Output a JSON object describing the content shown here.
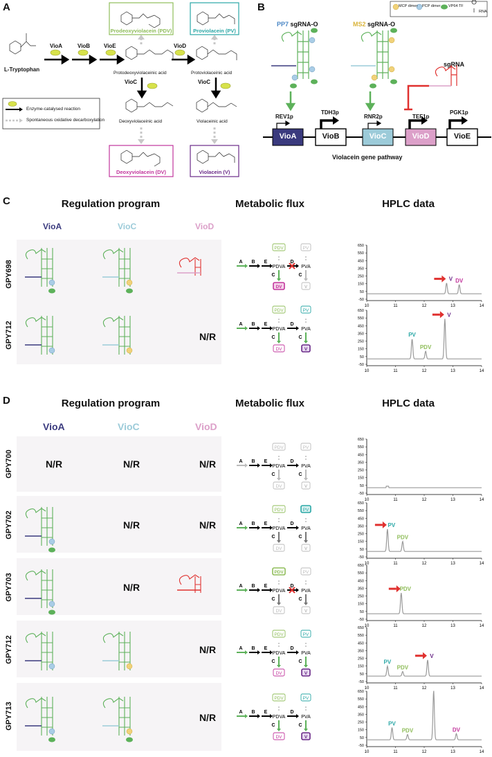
{
  "panelA": {
    "letter": "A",
    "start": "L-Tryptophan",
    "enzymes": [
      "VioA",
      "VioB",
      "VioE",
      "VioD",
      "VioC",
      "VioC"
    ],
    "intermediates": {
      "pdva": "Protodeoxyviolaceinic acid",
      "pva": "Protoviolaceinic acid",
      "dva": "Deoxyviolaceinic acid",
      "va": "Violaceinic acid"
    },
    "products": {
      "pdv": "Prodeoxyviolacein (PDV)",
      "pv": "Proviolacein (PV)",
      "dv": "Deoxyviolacein (DV)",
      "v": "Violacein (V)"
    },
    "legend": {
      "enzymatic": "Enzyme-catalysed reaction",
      "spontaneous": "Spontaneous oxidative decarboxylation"
    }
  },
  "panelB": {
    "letter": "B",
    "pp7_label": "PP7",
    "ms2_label": "MS2",
    "sgrna_o": "sgRNA-O",
    "sgrna": "sgRNA",
    "legend": [
      "MCP dimer",
      "PCP dimer",
      "VP64 TF",
      "RNA"
    ],
    "promoters": [
      "REV1p",
      "TDH3p",
      "RNR2p",
      "TEF1p",
      "PGK1p"
    ],
    "genes": [
      "VioA",
      "VioB",
      "VioC",
      "VioD",
      "VioE"
    ],
    "caption": "Violacein gene pathway"
  },
  "panelC": {
    "letter": "C",
    "titles": [
      "Regulation program",
      "Metabolic flux",
      "HPLC data"
    ],
    "columns": [
      "VioA",
      "VioC",
      "VioD"
    ],
    "rows": [
      {
        "strain": "GPY698",
        "viod": "",
        "peaks": [
          "V",
          "DV"
        ]
      },
      {
        "strain": "GPY712",
        "viod": "N/R",
        "peaks": [
          "PV",
          "PDV",
          "V"
        ]
      }
    ]
  },
  "panelD": {
    "letter": "D",
    "titles": [
      "Regulation program",
      "Metabolic flux",
      "HPLC data"
    ],
    "columns": [
      "VioA",
      "VioC",
      "VioD"
    ],
    "rows": [
      {
        "strain": "GPY700",
        "vioa": "N/R",
        "vioc": "N/R",
        "viod": "N/R"
      },
      {
        "strain": "GPY702",
        "vioa": "",
        "vioc": "N/R",
        "viod": "N/R"
      },
      {
        "strain": "GPY703",
        "vioa": "",
        "vioc": "N/R",
        "viod": ""
      },
      {
        "strain": "GPY712",
        "vioa": "",
        "vioc": "",
        "viod": "N/R"
      },
      {
        "strain": "GPY713",
        "vioa": "",
        "vioc": "",
        "viod": "N/R"
      }
    ]
  },
  "flux": {
    "A": "A",
    "B": "B",
    "E": "E",
    "D": "D",
    "C": "C",
    "PDVA": "PDVA",
    "PVA": "PVA",
    "PDV": "PDV",
    "PV": "PV",
    "DV": "DV",
    "V": "V"
  },
  "hplc": {
    "yticks": [
      "650",
      "550",
      "450",
      "350",
      "250",
      "150",
      "50",
      "-50"
    ],
    "xticks": [
      "10",
      "11",
      "12",
      "13",
      "14"
    ],
    "peak_labels": {
      "V": "V",
      "DV": "DV",
      "PV": "PV",
      "PDV": "PDV"
    }
  },
  "colors": {
    "green": "#5db15a",
    "red": "#e0312f",
    "vioa": "#3a3a7e",
    "vioc": "#9ccbd9",
    "viod": "#dca0c9",
    "pdv": "#8fbd5a",
    "pv": "#2aa7a6",
    "dv": "#c2359c",
    "v": "#6a2a88",
    "gray": "#999999"
  }
}
